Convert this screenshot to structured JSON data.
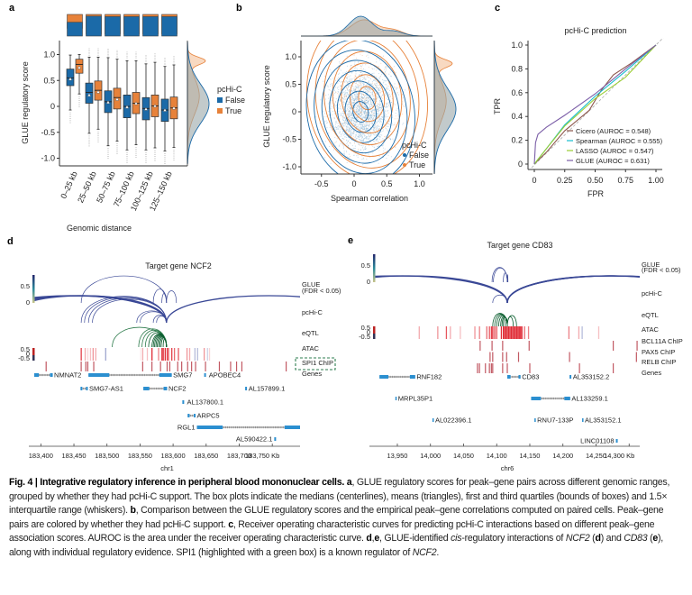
{
  "colors": {
    "false_blue": "#1b6aa8",
    "true_orange": "#e7823a",
    "arc_blue": "#3a4896",
    "eqtl_green": "#2c7a4b",
    "atac_red": "#e02c36",
    "chip_red": "#b3303c",
    "gene_blue": "#2b8fd0",
    "spi1_box": "#2e7d4f",
    "cicero": "#8c564b",
    "spearman": "#17becf",
    "lasso": "#9acd32",
    "glue": "#7b5ea7"
  },
  "panel_a": {
    "label": "a",
    "ylabel": "GLUE regulatory score",
    "xlabel": "Genomic distance",
    "yticks": [
      "1.0",
      "0.5",
      "0",
      "-0.5",
      "-1.0"
    ],
    "ytick_values": [
      1.0,
      0.5,
      0,
      -0.5,
      -1.0
    ],
    "legend_title": "pcHi-C",
    "legend": [
      "False",
      "True"
    ],
    "chart_data": {
      "type": "box",
      "categories": [
        "0–25 kb",
        "25–50 kb",
        "50–75 kb",
        "75–100 kb",
        "100–125 kb",
        "125–150 kb"
      ],
      "ylim": [
        -1.1,
        1.25
      ],
      "true_fraction": [
        0.36,
        0.08,
        0.1,
        0.1,
        0.1,
        0.1
      ],
      "series": [
        {
          "name": "False",
          "boxes": [
            {
              "q1": 0.4,
              "median": 0.55,
              "q3": 0.72,
              "mean": 0.53,
              "whisker_low": -0.07,
              "whisker_high": 0.99
            },
            {
              "q1": 0.06,
              "median": 0.27,
              "q3": 0.45,
              "mean": 0.22,
              "whisker_low": -0.52,
              "whisker_high": 0.95
            },
            {
              "q1": -0.12,
              "median": 0.09,
              "q3": 0.3,
              "mean": 0.08,
              "whisker_low": -0.76,
              "whisker_high": 0.94
            },
            {
              "q1": -0.22,
              "median": 0.0,
              "q3": 0.22,
              "mean": -0.01,
              "whisker_low": -0.84,
              "whisker_high": 0.88
            },
            {
              "q1": -0.26,
              "median": -0.04,
              "q3": 0.17,
              "mean": -0.05,
              "whisker_low": -0.84,
              "whisker_high": 0.82
            },
            {
              "q1": -0.29,
              "median": -0.07,
              "q3": 0.14,
              "mean": -0.07,
              "whisker_low": -0.86,
              "whisker_high": 0.77
            }
          ]
        },
        {
          "name": "True",
          "boxes": [
            {
              "q1": 0.64,
              "median": 0.81,
              "q3": 0.91,
              "mean": 0.75,
              "whisker_low": 0.24,
              "whisker_high": 1.0
            },
            {
              "q1": 0.12,
              "median": 0.31,
              "q3": 0.49,
              "mean": 0.28,
              "whisker_low": -0.44,
              "whisker_high": 0.95
            },
            {
              "q1": -0.05,
              "median": 0.17,
              "q3": 0.35,
              "mean": 0.14,
              "whisker_low": -0.67,
              "whisker_high": 0.91
            },
            {
              "q1": -0.14,
              "median": 0.06,
              "q3": 0.27,
              "mean": 0.06,
              "whisker_low": -0.74,
              "whisker_high": 0.88
            },
            {
              "q1": -0.2,
              "median": 0.01,
              "q3": 0.22,
              "mean": 0.01,
              "whisker_low": -0.8,
              "whisker_high": 0.85
            },
            {
              "q1": -0.24,
              "median": -0.03,
              "q3": 0.18,
              "mean": -0.03,
              "whisker_low": -0.79,
              "whisker_high": 0.8
            }
          ]
        }
      ]
    }
  },
  "panel_b": {
    "label": "b",
    "ylabel": "GLUE regulatory score",
    "xlabel": "Spearman correlation",
    "xticks": [
      "-0.5",
      "0",
      "0.5",
      "1.0"
    ],
    "xtick_values": [
      -0.5,
      0,
      0.5,
      1.0
    ],
    "yticks": [
      "1.0",
      "0.5",
      "0",
      "-0.5",
      "-1.0"
    ],
    "ytick_values": [
      1.0,
      0.5,
      0,
      -0.5,
      -1.0
    ],
    "legend_title": "pcHi-C",
    "legend": [
      "False",
      "True"
    ],
    "chart_data": {
      "type": "scatter",
      "xlim": [
        -0.8,
        1.2
      ],
      "ylim": [
        -1.1,
        1.3
      ],
      "density_center_false": [
        0.1,
        0.0
      ],
      "density_center_true": [
        0.2,
        0.25
      ]
    }
  },
  "panel_c": {
    "label": "c",
    "title": "pcHi-C prediction",
    "xlabel": "FPR",
    "ylabel": "TPR",
    "xticks": [
      "0",
      "0.25",
      "0.50",
      "0.75",
      "1.00"
    ],
    "xtick_values": [
      0,
      0.25,
      0.5,
      0.75,
      1.0
    ],
    "yticks": [
      "0",
      "0.2",
      "0.4",
      "0.6",
      "0.8",
      "1.0"
    ],
    "ytick_values": [
      0,
      0.2,
      0.4,
      0.6,
      0.8,
      1.0
    ],
    "chart_data": {
      "type": "line",
      "xlim": [
        0,
        1
      ],
      "ylim": [
        0,
        1
      ],
      "series": [
        {
          "name": "Cicero (AUROC = 0.548)",
          "color": "#8c564b",
          "x": [
            0,
            0.1,
            0.25,
            0.45,
            0.55,
            0.65,
            0.8,
            1
          ],
          "y": [
            0,
            0.1,
            0.28,
            0.45,
            0.62,
            0.75,
            0.85,
            1
          ]
        },
        {
          "name": "Spearman (AUROC = 0.555)",
          "color": "#17becf",
          "x": [
            0,
            0.1,
            0.25,
            0.5,
            0.75,
            1
          ],
          "y": [
            0,
            0.13,
            0.33,
            0.57,
            0.78,
            1
          ]
        },
        {
          "name": "LASSO (AUROC = 0.547)",
          "color": "#9acd32",
          "x": [
            0,
            0.1,
            0.25,
            0.5,
            0.75,
            1
          ],
          "y": [
            0,
            0.13,
            0.32,
            0.55,
            0.73,
            1
          ]
        },
        {
          "name": "GLUE (AUROC = 0.631)",
          "color": "#7b5ea7",
          "x": [
            0,
            0.01,
            0.03,
            0.1,
            0.25,
            0.5,
            0.75,
            1
          ],
          "y": [
            0,
            0.18,
            0.25,
            0.31,
            0.41,
            0.59,
            0.8,
            1
          ]
        }
      ]
    }
  },
  "panel_d": {
    "label": "d",
    "title": "Target gene NCF2",
    "chrom": "chr1",
    "xlim_kb": [
      183390,
      183792
    ],
    "tss_kb": 183590,
    "xticks": [
      "183,400",
      "183,450",
      "183,500",
      "183,550",
      "183,600",
      "183,650",
      "183,700",
      "183,750 Kb"
    ],
    "xtick_values": [
      183400,
      183450,
      183500,
      183550,
      183600,
      183650,
      183700,
      183750
    ],
    "colorbar_ticks": [
      "0.5",
      "0"
    ],
    "atac_ticks": [
      "0.5",
      "0",
      "-0.5"
    ],
    "tracks": [
      "GLUE",
      "(FDR < 0.05)",
      "pcHi-C",
      "eQTL",
      "ATAC",
      "SPI1 ChIP",
      "Genes"
    ],
    "glue_peaks": [
      183461,
      183570,
      183583,
      183605
    ],
    "pchic_peaks": [
      183300,
      183310,
      183320,
      183330,
      183340,
      183461,
      183466,
      183472,
      183478,
      183545,
      183550,
      183570,
      183575,
      183900
    ],
    "eqtl_peaks": [
      183508,
      183548,
      183553,
      183558,
      183563,
      183568,
      183570,
      183572,
      183574,
      183576,
      183578,
      183580,
      183582,
      183585
    ],
    "atac": [
      [
        183461,
        0.9
      ],
      [
        183467,
        0.4
      ],
      [
        183471,
        0.2
      ],
      [
        183475,
        0.3
      ],
      [
        183479,
        0.5
      ],
      [
        183483,
        0.4
      ],
      [
        183498,
        -0.4
      ],
      [
        183551,
        0.1
      ],
      [
        183554,
        0.4
      ],
      [
        183561,
        0.3
      ],
      [
        183568,
        1.0
      ],
      [
        183578,
        0.6
      ],
      [
        183583,
        0.9
      ],
      [
        183585,
        1.0
      ],
      [
        183588,
        1.0
      ],
      [
        183591,
        0.9
      ],
      [
        183593,
        0.8
      ],
      [
        183598,
        0.9
      ],
      [
        183602,
        0.7
      ],
      [
        183608,
        0.8
      ],
      [
        183621,
        0.5
      ],
      [
        183625,
        0.4
      ],
      [
        183633,
        -0.3
      ],
      [
        183637,
        -0.3
      ],
      [
        183647,
        0.5
      ],
      [
        183652,
        -0.2
      ],
      [
        183655,
        0.2
      ]
    ],
    "chip_tracks": [
      {
        "name": "SPI1 ChIP",
        "peaks": [
          183408,
          183461,
          183468,
          183471,
          183480,
          183554,
          183568,
          183581,
          183591,
          183595,
          183607,
          183613,
          183622,
          183628,
          183634,
          183649,
          183670,
          183687,
          183696,
          183704,
          183771
        ]
      }
    ],
    "genes": [
      {
        "name": "NMNAT2",
        "start": 183390,
        "end": 183418,
        "row": 0
      },
      {
        "name": "SMG7",
        "start": 183472,
        "end": 183598,
        "row": 0
      },
      {
        "name": "APOBEC4",
        "start": 183647,
        "end": 183652,
        "row": 0
      },
      {
        "name": "SMG7-AS1",
        "start": 183460,
        "end": 183471,
        "row": 1
      },
      {
        "name": "NCF2",
        "start": 183555,
        "end": 183591,
        "row": 1
      },
      {
        "name": "AL157899.1",
        "start": 183709,
        "end": 183712,
        "row": 1
      },
      {
        "name": "AL137800.1",
        "start": 183614,
        "end": 183619,
        "row": 2
      },
      {
        "name": "ARPC5",
        "start": 183622,
        "end": 183634,
        "row": 3
      },
      {
        "name": "RGL1",
        "start": 183636,
        "end": 183792,
        "row": 4
      },
      {
        "name": "AL590422.1",
        "start": 183753,
        "end": 183756,
        "row": 5
      }
    ]
  },
  "panel_e": {
    "label": "e",
    "title": "Target gene CD83",
    "chrom": "chr6",
    "xlim_kb": [
      13916,
      14316
    ],
    "tss_kb": 14116,
    "xticks": [
      "13,950",
      "14,000",
      "14,050",
      "14,100",
      "14,150",
      "14,200",
      "14,250",
      "14,300 Kb"
    ],
    "xtick_values": [
      13950,
      14000,
      14050,
      14100,
      14150,
      14200,
      14250,
      14300
    ],
    "colorbar_ticks": [
      "0.5",
      "0"
    ],
    "atac_ticks": [
      "0.5",
      "0",
      "-0.5"
    ],
    "tracks": [
      "GLUE",
      "(FDR < 0.05)",
      "pcHi-C",
      "eQTL",
      "ATAC",
      "BCL11A ChIP",
      "PAX5 ChIP",
      "RELB ChIP",
      "Genes"
    ],
    "glue_peaks": [
      14093,
      14095,
      14110,
      14117
    ],
    "pchic_peaks": [
      13780,
      13800,
      13820,
      14094,
      14420,
      14425,
      14430,
      14435,
      14440
    ],
    "eqtl_peaks": [
      14094,
      14097,
      14100,
      14103,
      14106,
      14108,
      14110,
      14113,
      14125,
      14130
    ],
    "atac": [
      [
        13983,
        0.4
      ],
      [
        14011,
        0.5
      ],
      [
        14024,
        0.8
      ],
      [
        14030,
        0.4
      ],
      [
        14045,
        0.3
      ],
      [
        14067,
        0.5
      ],
      [
        14074,
        0.6
      ],
      [
        14085,
        0.7
      ],
      [
        14089,
        0.8
      ],
      [
        14092,
        0.9
      ],
      [
        14094,
        1.0
      ],
      [
        14097,
        0.9
      ],
      [
        14100,
        0.8
      ],
      [
        14107,
        1.0
      ],
      [
        14110,
        1.0
      ],
      [
        14112,
        1.0
      ],
      [
        14114,
        1.0
      ],
      [
        14116,
        1.0
      ],
      [
        14118,
        1.0
      ],
      [
        14120,
        1.0
      ],
      [
        14122,
        1.0
      ],
      [
        14124,
        1.0
      ],
      [
        14126,
        1.0
      ],
      [
        14128,
        1.0
      ],
      [
        14130,
        1.0
      ],
      [
        14132,
        1.0
      ],
      [
        14134,
        1.0
      ],
      [
        14136,
        1.0
      ],
      [
        14138,
        1.0
      ],
      [
        14142,
        0.7
      ],
      [
        14148,
        0.6
      ],
      [
        14209,
        0.6
      ],
      [
        14224,
        0.4
      ],
      [
        14229,
        -0.3
      ],
      [
        14254,
        0.3
      ]
    ],
    "chip_tracks": [
      {
        "name": "BCL11A ChIP",
        "peaks": [
          14075,
          14093,
          14109,
          14149,
          14276,
          14312
        ]
      },
      {
        "name": "PAX5 ChIP",
        "peaks": [
          14090,
          14094,
          14109,
          14115,
          14133,
          14210,
          14311
        ]
      },
      {
        "name": "RELB ChIP",
        "peaks": [
          14071,
          14074,
          14083,
          14089,
          14092,
          14094,
          14109,
          14116,
          14150,
          14225,
          14276
        ]
      }
    ],
    "genes": [
      {
        "name": "RNF182",
        "start": 13923,
        "end": 13977,
        "row": 0
      },
      {
        "name": "CD83",
        "start": 14116,
        "end": 14136,
        "row": 0
      },
      {
        "name": "AL353152.2",
        "start": 14210,
        "end": 14213,
        "row": 0
      },
      {
        "name": "MRPL35P1",
        "start": 13947,
        "end": 13948,
        "row": 1
      },
      {
        "name": "AL133259.1",
        "start": 14152,
        "end": 14211,
        "row": 1
      },
      {
        "name": "AL022396.1",
        "start": 14003,
        "end": 14005,
        "row": 2
      },
      {
        "name": "RNU7-133P",
        "start": 14157,
        "end": 14158,
        "row": 2
      },
      {
        "name": "AL353152.1",
        "start": 14229,
        "end": 14231,
        "row": 2
      },
      {
        "name": "LINC01108",
        "start": 14280,
        "end": 14284,
        "row": 3
      }
    ]
  },
  "caption": [
    {
      "t": "Fig. 4 | Integrative regulatory inference in peripheral blood mononuclear cells. ",
      "s": "b"
    },
    {
      "t": "a",
      "s": "b"
    },
    {
      "t": ", GLUE regulatory scores for peak–gene pairs across different genomic ranges, grouped by whether they had pcHi-C support. The box plots indicate the medians (centerlines), means (triangles), first and third quartiles (bounds of boxes) and 1.5× interquartile range (whiskers). ",
      "s": ""
    },
    {
      "t": "b",
      "s": "b"
    },
    {
      "t": ", Comparison between the GLUE regulatory scores and the empirical peak–gene correlations computed on paired cells. Peak–gene pairs are colored by whether they had pcHi-C support. ",
      "s": ""
    },
    {
      "t": "c",
      "s": "b"
    },
    {
      "t": ", Receiver operating characteristic curves for predicting pcHi-C interactions based on different peak–gene association scores. AUROC is the area under the receiver operating characteristic curve. ",
      "s": ""
    },
    {
      "t": "d",
      "s": "b"
    },
    {
      "t": ",",
      "s": ""
    },
    {
      "t": "e",
      "s": "b"
    },
    {
      "t": ", GLUE-identified ",
      "s": ""
    },
    {
      "t": "cis",
      "s": "i"
    },
    {
      "t": "-regulatory interactions of ",
      "s": ""
    },
    {
      "t": "NCF2",
      "s": "i"
    },
    {
      "t": " (",
      "s": ""
    },
    {
      "t": "d",
      "s": "b"
    },
    {
      "t": ") and ",
      "s": ""
    },
    {
      "t": "CD83",
      "s": "i"
    },
    {
      "t": " (",
      "s": ""
    },
    {
      "t": "e",
      "s": "b"
    },
    {
      "t": "), along with individual regulatory evidence. SPI1 (highlighted with a green box) is a known regulator of ",
      "s": ""
    },
    {
      "t": "NCF2",
      "s": "i"
    },
    {
      "t": ".",
      "s": ""
    }
  ]
}
